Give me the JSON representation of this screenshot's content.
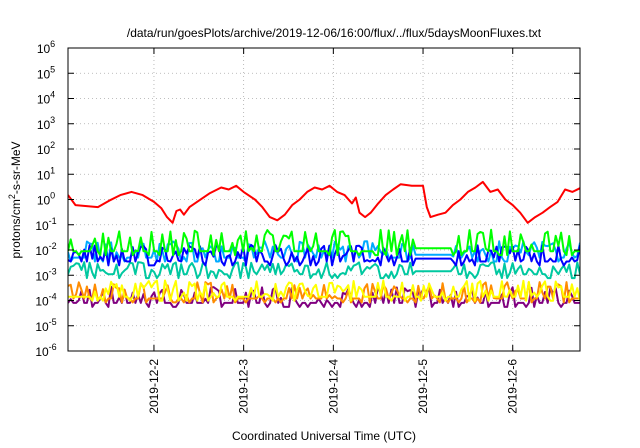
{
  "chart_data": {
    "type": "line",
    "title": "/data/run/goesPlots/archive/2019-12-06/16:00/flux/../flux/5daysMoonFluxes.txt",
    "xlabel": "Coordinated Universal Time (UTC)",
    "ylabel_parts": [
      "protons/cm",
      "2",
      "-s-sr-MeV"
    ],
    "y_scale": "log",
    "ylim": [
      1e-06,
      1000000.0
    ],
    "y_ticks": [
      {
        "base": "10",
        "exp": "-6",
        "value": 1e-06
      },
      {
        "base": "10",
        "exp": "-5",
        "value": 1e-05
      },
      {
        "base": "10",
        "exp": "-4",
        "value": 0.0001
      },
      {
        "base": "10",
        "exp": "-3",
        "value": 0.001
      },
      {
        "base": "10",
        "exp": "-2",
        "value": 0.01
      },
      {
        "base": "10",
        "exp": "-1",
        "value": 0.1
      },
      {
        "base": "10",
        "exp": "0",
        "value": 1
      },
      {
        "base": "10",
        "exp": "1",
        "value": 10
      },
      {
        "base": "10",
        "exp": "2",
        "value": 100
      },
      {
        "base": "10",
        "exp": "3",
        "value": 1000
      },
      {
        "base": "10",
        "exp": "4",
        "value": 10000
      },
      {
        "base": "10",
        "exp": "5",
        "value": 100000
      },
      {
        "base": "10",
        "exp": "6",
        "value": 1000000
      }
    ],
    "xlim": [
      "2019-12-01T01:00",
      "2019-12-06T18:00"
    ],
    "x_ticks": [
      {
        "label": "2019-12-2",
        "value": "2019-12-02T00:00"
      },
      {
        "label": "2019-12-3",
        "value": "2019-12-03T00:00"
      },
      {
        "label": "2019-12-4",
        "value": "2019-12-04T00:00"
      },
      {
        "label": "2019-12-5",
        "value": "2019-12-05T00:00"
      },
      {
        "label": "2019-12-6",
        "value": "2019-12-06T00:00"
      }
    ],
    "grid": true,
    "series": [
      {
        "color": "#ff0000",
        "points": [
          [
            "2019-12-01T01:00",
            1.5
          ],
          [
            "2019-12-01T03:00",
            0.6
          ],
          [
            "2019-12-01T06:00",
            0.55
          ],
          [
            "2019-12-01T09:00",
            0.5
          ],
          [
            "2019-12-01T12:00",
            0.9
          ],
          [
            "2019-12-01T15:00",
            1.5
          ],
          [
            "2019-12-01T18:00",
            2.0
          ],
          [
            "2019-12-01T21:00",
            1.5
          ],
          [
            "2019-12-02T00:00",
            0.8
          ],
          [
            "2019-12-02T02:00",
            0.45
          ],
          [
            "2019-12-02T03:30",
            0.2
          ],
          [
            "2019-12-02T05:00",
            0.12
          ],
          [
            "2019-12-02T06:00",
            0.35
          ],
          [
            "2019-12-02T07:00",
            0.4
          ],
          [
            "2019-12-02T08:00",
            0.25
          ],
          [
            "2019-12-02T09:30",
            0.5
          ],
          [
            "2019-12-02T12:00",
            0.9
          ],
          [
            "2019-12-02T15:00",
            1.8
          ],
          [
            "2019-12-02T18:00",
            3.0
          ],
          [
            "2019-12-02T20:00",
            2.5
          ],
          [
            "2019-12-02T22:00",
            3.5
          ],
          [
            "2019-12-03T00:00",
            2.0
          ],
          [
            "2019-12-03T03:00",
            1.0
          ],
          [
            "2019-12-03T05:00",
            0.5
          ],
          [
            "2019-12-03T07:00",
            0.2
          ],
          [
            "2019-12-03T09:00",
            0.15
          ],
          [
            "2019-12-03T11:00",
            0.25
          ],
          [
            "2019-12-03T13:00",
            0.6
          ],
          [
            "2019-12-03T15:00",
            1.0
          ],
          [
            "2019-12-03T17:00",
            2.0
          ],
          [
            "2019-12-03T19:00",
            3.0
          ],
          [
            "2019-12-03T21:00",
            2.5
          ],
          [
            "2019-12-03T23:00",
            3.5
          ],
          [
            "2019-12-04T01:00",
            2.0
          ],
          [
            "2019-12-04T03:00",
            1.5
          ],
          [
            "2019-12-04T05:00",
            0.7
          ],
          [
            "2019-12-04T06:00",
            1.2
          ],
          [
            "2019-12-04T07:00",
            0.3
          ],
          [
            "2019-12-04T08:30",
            0.2
          ],
          [
            "2019-12-04T10:00",
            0.3
          ],
          [
            "2019-12-04T12:00",
            0.7
          ],
          [
            "2019-12-04T14:00",
            1.5
          ],
          [
            "2019-12-04T16:00",
            2.5
          ],
          [
            "2019-12-04T18:00",
            4.0
          ],
          [
            "2019-12-04T21:00",
            3.5
          ],
          [
            "2019-12-05T00:00",
            3.5
          ],
          [
            "2019-12-05T01:00",
            0.5
          ],
          [
            "2019-12-05T02:00",
            0.2
          ],
          [
            "2019-12-05T04:00",
            0.25
          ],
          [
            "2019-12-05T06:00",
            0.3
          ],
          [
            "2019-12-05T08:00",
            0.6
          ],
          [
            "2019-12-05T10:00",
            1.0
          ],
          [
            "2019-12-05T12:00",
            2.0
          ],
          [
            "2019-12-05T14:00",
            3.0
          ],
          [
            "2019-12-05T16:00",
            5.0
          ],
          [
            "2019-12-05T18:00",
            2.0
          ],
          [
            "2019-12-05T20:00",
            2.5
          ],
          [
            "2019-12-05T22:00",
            1.0
          ],
          [
            "2019-12-06T00:00",
            0.6
          ],
          [
            "2019-12-06T02:00",
            0.3
          ],
          [
            "2019-12-06T04:00",
            0.12
          ],
          [
            "2019-12-06T06:00",
            0.2
          ],
          [
            "2019-12-06T08:00",
            0.3
          ],
          [
            "2019-12-06T10:00",
            0.5
          ],
          [
            "2019-12-06T12:00",
            0.8
          ],
          [
            "2019-12-06T14:00",
            2.5
          ],
          [
            "2019-12-06T16:00",
            2.0
          ],
          [
            "2019-12-06T18:00",
            2.8
          ]
        ]
      },
      {
        "color": "#00ff00",
        "base": 0.009,
        "profile": "green"
      },
      {
        "color": "#0000ff",
        "base": 0.0035,
        "profile": "blue"
      },
      {
        "color": "#00aaff",
        "base": 0.005,
        "profile": "ltblue"
      },
      {
        "color": "#00c8a0",
        "base": 0.0011,
        "profile": "teal"
      },
      {
        "color": "#ffff00",
        "base": 0.00014,
        "profile": "yellow"
      },
      {
        "color": "#ff8c00",
        "base": 0.00012,
        "profile": "orange"
      },
      {
        "color": "#800080",
        "base": 8e-05,
        "profile": "purple"
      }
    ]
  }
}
